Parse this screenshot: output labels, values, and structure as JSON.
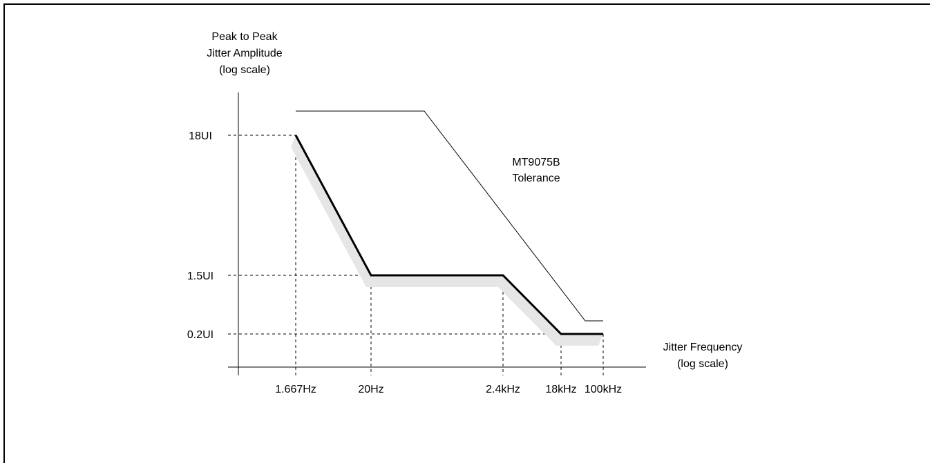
{
  "chart_data": {
    "type": "line",
    "title": "",
    "ylabel": [
      "Peak to Peak",
      "Jitter Amplitude",
      "(log scale)"
    ],
    "xlabel": [
      "Jitter Frequency",
      "(log scale)"
    ],
    "x_scale": "log",
    "y_scale": "log",
    "x_ticks": [
      {
        "label": "1.667Hz",
        "value": 1.667
      },
      {
        "label": "20Hz",
        "value": 20
      },
      {
        "label": "2.4kHz",
        "value": 2400
      },
      {
        "label": "18kHz",
        "value": 18000
      },
      {
        "label": "100kHz",
        "value": 100000
      }
    ],
    "y_ticks": [
      {
        "label": "18UI",
        "value": 18
      },
      {
        "label": "1.5UI",
        "value": 1.5
      },
      {
        "label": "0.2UI",
        "value": 0.2
      }
    ],
    "series": [
      {
        "x": [
          1.667,
          20,
          2400,
          18000,
          100000
        ],
        "y": [
          18,
          1.5,
          1.5,
          0.2,
          0.2
        ]
      },
      {
        "name": "MT9075B Tolerance",
        "label_lines": [
          "MT9075B",
          "Tolerance"
        ],
        "x": [
          1.667,
          400,
          50000,
          100000
        ],
        "y": [
          40,
          40,
          0.33,
          0.33
        ]
      }
    ],
    "grid": false,
    "legend": "none"
  }
}
